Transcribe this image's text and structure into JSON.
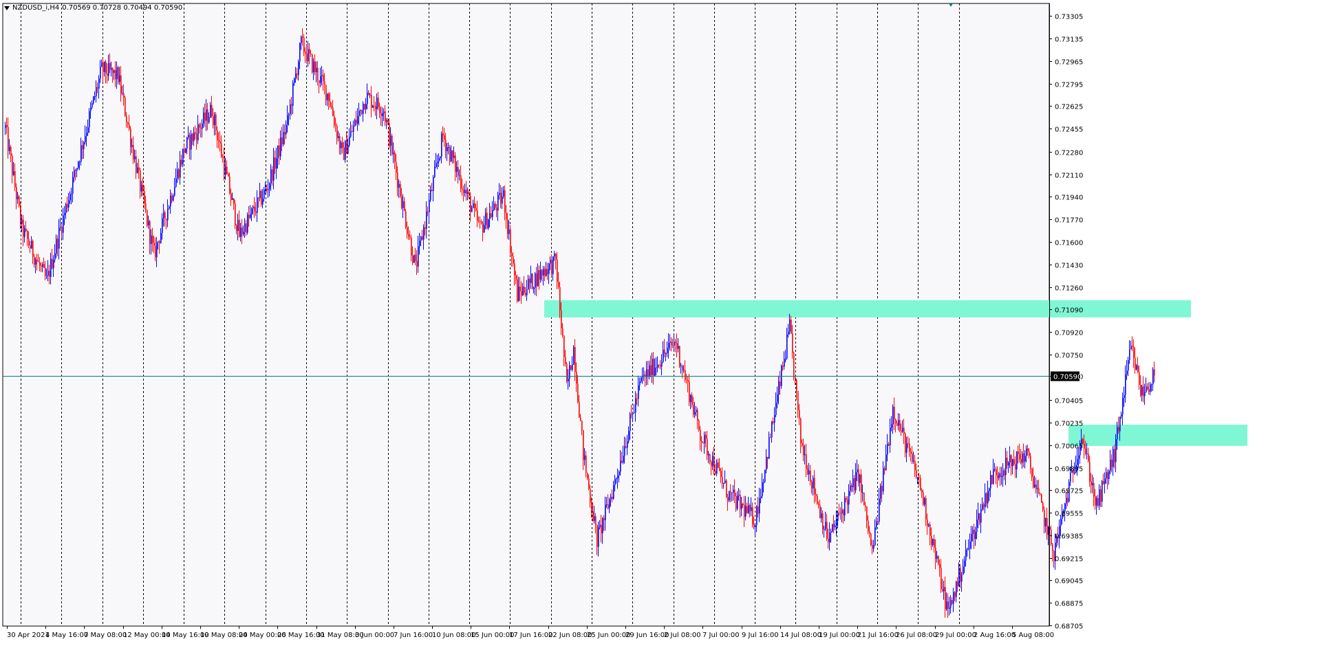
{
  "title": {
    "symbol": "NZDUSD_i,H4",
    "ohlc": "0.70569 0.70728 0.70494 0.70590"
  },
  "colors": {
    "background": "#ffffff",
    "plot_bg": "#f8f8fb",
    "bull": "#0000ff",
    "bear": "#ff0000",
    "grid": "#000000",
    "price_line": "#008080",
    "zone": "#7ff7d4"
  },
  "chart_data": {
    "type": "candlestick",
    "title": "NZDUSD_i,H4",
    "ylim": [
      0.687,
      0.734
    ],
    "y_ticks": [
      "0.73305",
      "0.73135",
      "0.72965",
      "0.72795",
      "0.72625",
      "0.72455",
      "0.72280",
      "0.72110",
      "0.71940",
      "0.71770",
      "0.71600",
      "0.71430",
      "0.71260",
      "0.71090",
      "0.70920",
      "0.70750",
      "0.70590",
      "0.70405",
      "0.70235",
      "0.70065",
      "0.69895",
      "0.69725",
      "0.69555",
      "0.69385",
      "0.69215",
      "0.69045",
      "0.68875",
      "0.68705"
    ],
    "x_ticks": [
      "30 Apr 2021",
      "4 May 16:00",
      "7 May 08:00",
      "12 May 00:00",
      "14 May 16:00",
      "19 May 08:00",
      "24 May 00:00",
      "26 May 16:00",
      "31 May 08:00",
      "3 Jun 00:00",
      "7 Jun 16:00",
      "10 Jun 08:00",
      "15 Jun 00:00",
      "17 Jun 16:00",
      "22 Jun 08:00",
      "25 Jun 00:00",
      "29 Jun 16:00",
      "2 Jul 08:00",
      "7 Jul 00:00",
      "9 Jul 16:00",
      "14 Jul 08:00",
      "19 Jul 00:00",
      "21 Jul 16:00",
      "26 Jul 08:00",
      "29 Jul 00:00",
      "2 Aug 16:00",
      "5 Aug 08:00"
    ],
    "day_separators": [
      "30 Apr",
      "5 May",
      "10 May",
      "13 May",
      "18 May",
      "21 May",
      "26 May",
      "31 May",
      "3 Jun",
      "8 Jun",
      "11 Jun",
      "16 Jun",
      "21 Jun",
      "24 Jun",
      "29 Jun",
      "2 Jul",
      "7 Jul",
      "12 Jul",
      "15 Jul",
      "20 Jul",
      "23 Jul",
      "28 Jul",
      "2 Aug",
      "5 Aug"
    ],
    "current_price": 0.7059,
    "current_price_label": "0.70590",
    "zones": [
      {
        "from_bar": 392,
        "to_bar": 862,
        "low": 0.7103,
        "high": 0.7116
      },
      {
        "from_bar": 773,
        "to_bar": 903,
        "low": 0.7006,
        "high": 0.7022
      }
    ],
    "key_points": [
      {
        "bar": 0,
        "price": 0.7246
      },
      {
        "bar": 12,
        "price": 0.717
      },
      {
        "bar": 30,
        "price": 0.713
      },
      {
        "bar": 70,
        "price": 0.729
      },
      {
        "bar": 82,
        "price": 0.7285
      },
      {
        "bar": 108,
        "price": 0.715
      },
      {
        "bar": 130,
        "price": 0.723
      },
      {
        "bar": 150,
        "price": 0.726
      },
      {
        "bar": 170,
        "price": 0.7165
      },
      {
        "bar": 190,
        "price": 0.72
      },
      {
        "bar": 205,
        "price": 0.725
      },
      {
        "bar": 215,
        "price": 0.731
      },
      {
        "bar": 235,
        "price": 0.727
      },
      {
        "bar": 245,
        "price": 0.7225
      },
      {
        "bar": 262,
        "price": 0.727
      },
      {
        "bar": 275,
        "price": 0.726
      },
      {
        "bar": 298,
        "price": 0.714
      },
      {
        "bar": 318,
        "price": 0.724
      },
      {
        "bar": 345,
        "price": 0.717
      },
      {
        "bar": 362,
        "price": 0.7195
      },
      {
        "bar": 372,
        "price": 0.712
      },
      {
        "bar": 393,
        "price": 0.714
      },
      {
        "bar": 400,
        "price": 0.7145
      },
      {
        "bar": 408,
        "price": 0.705
      },
      {
        "bar": 413,
        "price": 0.708
      },
      {
        "bar": 420,
        "price": 0.7
      },
      {
        "bar": 430,
        "price": 0.6935
      },
      {
        "bar": 442,
        "price": 0.6975
      },
      {
        "bar": 462,
        "price": 0.7055
      },
      {
        "bar": 487,
        "price": 0.7085
      },
      {
        "bar": 505,
        "price": 0.7015
      },
      {
        "bar": 525,
        "price": 0.697
      },
      {
        "bar": 545,
        "price": 0.695
      },
      {
        "bar": 558,
        "price": 0.7025
      },
      {
        "bar": 570,
        "price": 0.7095
      },
      {
        "bar": 578,
        "price": 0.701
      },
      {
        "bar": 598,
        "price": 0.6935
      },
      {
        "bar": 620,
        "price": 0.6985
      },
      {
        "bar": 630,
        "price": 0.6925
      },
      {
        "bar": 645,
        "price": 0.7035
      },
      {
        "bar": 665,
        "price": 0.6975
      },
      {
        "bar": 685,
        "price": 0.688
      },
      {
        "bar": 700,
        "price": 0.693
      },
      {
        "bar": 718,
        "price": 0.6985
      },
      {
        "bar": 742,
        "price": 0.7
      },
      {
        "bar": 762,
        "price": 0.6925
      },
      {
        "bar": 782,
        "price": 0.7015
      },
      {
        "bar": 793,
        "price": 0.696
      },
      {
        "bar": 806,
        "price": 0.7
      },
      {
        "bar": 818,
        "price": 0.708
      },
      {
        "bar": 826,
        "price": 0.7045
      },
      {
        "bar": 835,
        "price": 0.7059
      }
    ],
    "volatility": 0.0009
  }
}
